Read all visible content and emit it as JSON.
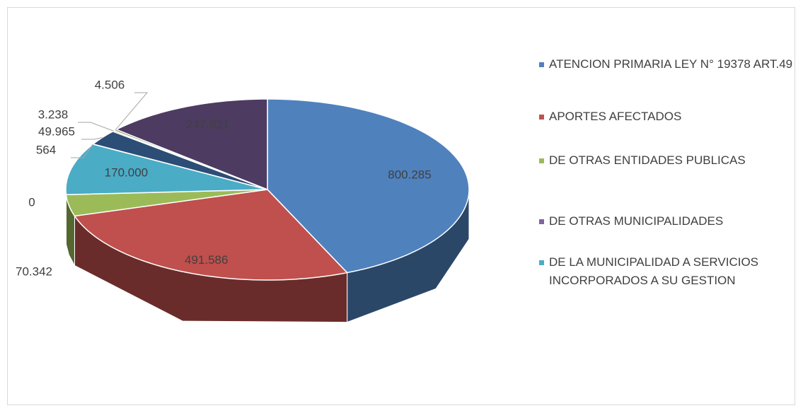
{
  "chart_data": {
    "type": "pie3d",
    "categories": [
      "ATENCION PRIMARIA LEY N° 19378 ART.49",
      "APORTES AFECTADOS",
      "DE OTRAS ENTIDADES PUBLICAS",
      "DE OTRAS MUNICIPALIDADES",
      "DE LA MUNICIPALIDAD A SERVICIOS INCORPORADOS A SU GESTION",
      null,
      null,
      null,
      null,
      null
    ],
    "values": [
      800285,
      491586,
      70342,
      0,
      170000,
      564,
      49965,
      3238,
      4506,
      247821
    ],
    "value_labels": [
      "800.285",
      "491.586",
      "70.342",
      "0",
      "170.000",
      "564",
      "49.965",
      "3.238",
      "4.506",
      "247.821"
    ],
    "colors": [
      "#4f81bd",
      "#c0504d",
      "#9bbb59",
      "#8064a2",
      "#4bacc6",
      "#f79646",
      "#2c4d75",
      "#772c2a",
      "#5f7530",
      "#4d3b62"
    ],
    "legend": "right"
  }
}
